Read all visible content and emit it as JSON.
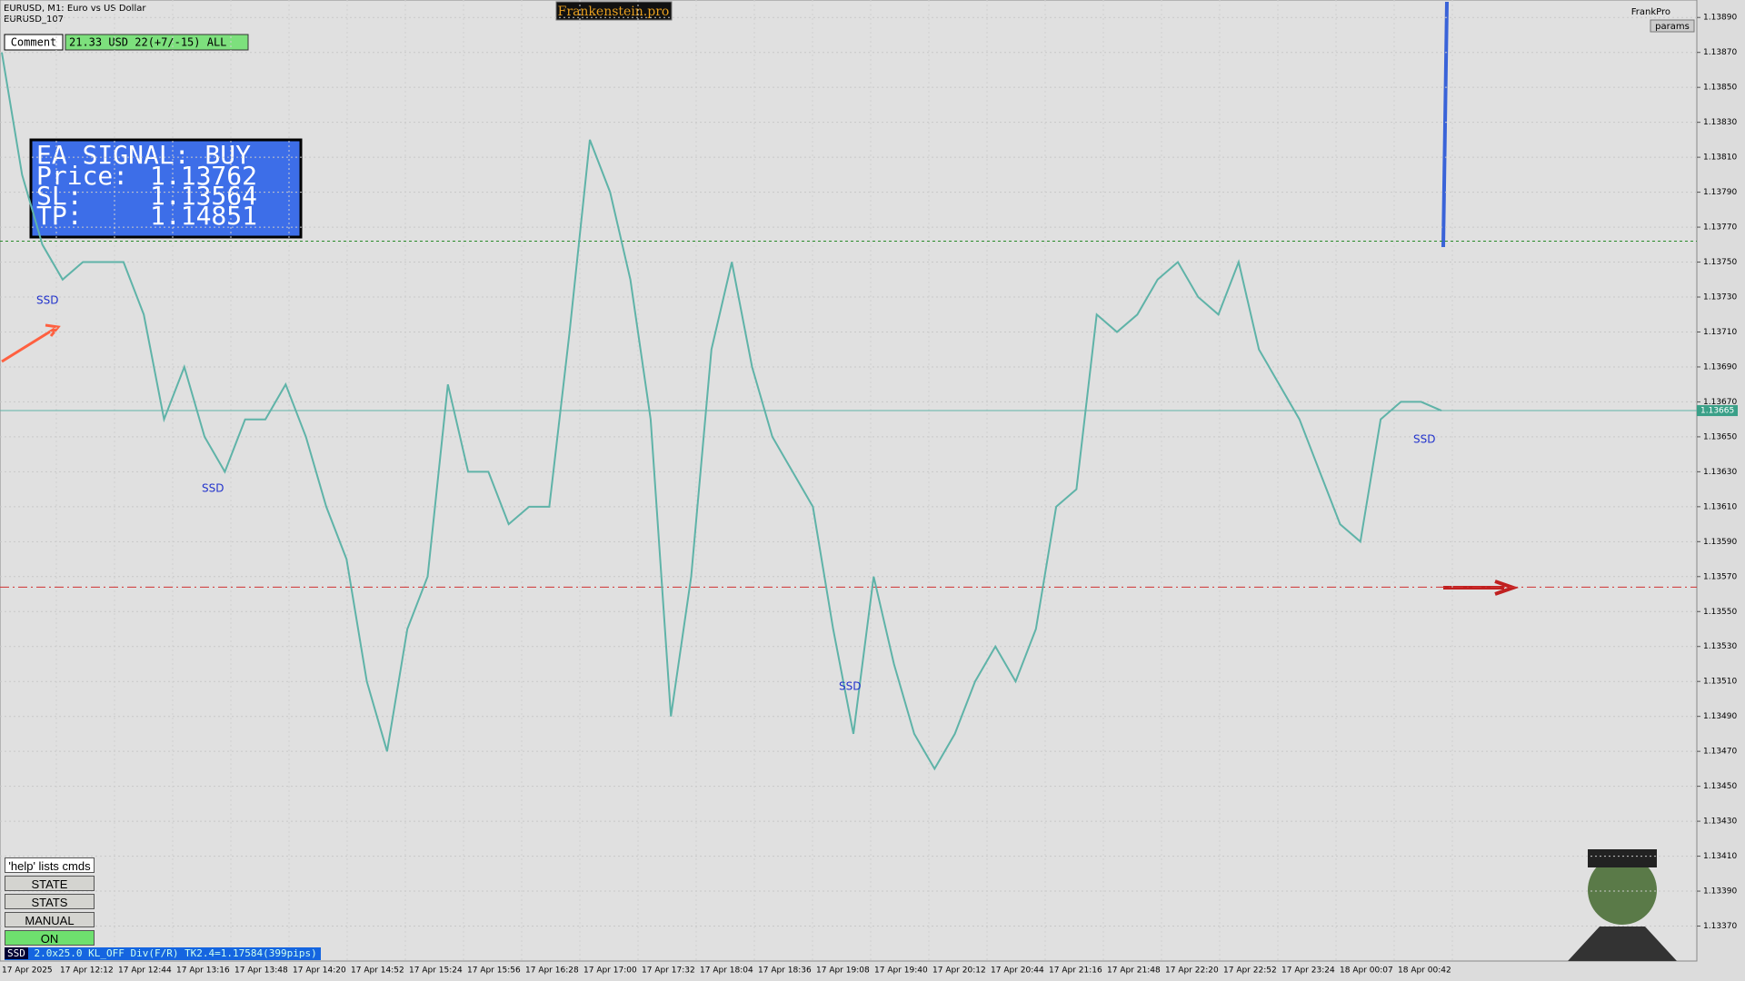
{
  "header": {
    "symbol": "EURUSD, M1:  Euro vs US Dollar",
    "account": "EURUSD_107",
    "brand": "Frankenstein.pro",
    "user": "FrankPro",
    "params": "params"
  },
  "comment": {
    "label": "Comment",
    "text": "21.33 USD 22(+7/-15) ALL"
  },
  "signal": {
    "title": "EA SIGNAL: BUY",
    "rows": [
      [
        "Price:",
        "1.13762"
      ],
      [
        "SL:",
        "1.13564"
      ],
      [
        "TP:",
        "1.14851"
      ]
    ]
  },
  "buttons": [
    "'help' lists cmds",
    "STATE",
    "STATS",
    "MANUAL",
    "ON"
  ],
  "status": {
    "tag": "SSD",
    "text": "2.0x25.0 KL_OFF Div(F/R) TK2.4=1.17584(399pips)"
  },
  "annotations": [
    "SSD",
    "SSD",
    "SSD",
    "SSD"
  ],
  "chart_data": {
    "type": "line",
    "values": [
      1.1387,
      1.138,
      1.1376,
      1.1374,
      1.1375,
      1.1375,
      1.1375,
      1.1372,
      1.1366,
      1.1369,
      1.1365,
      1.1363,
      1.1366,
      1.1366,
      1.1368,
      1.1365,
      1.1361,
      1.1358,
      1.1351,
      1.1347,
      1.1354,
      1.1357,
      1.1368,
      1.1363,
      1.1363,
      1.136,
      1.1361,
      1.1361,
      1.1371,
      1.1382,
      1.1379,
      1.1374,
      1.1366,
      1.1349,
      1.1357,
      1.137,
      1.1375,
      1.1369,
      1.1365,
      1.1363,
      1.1361,
      1.1354,
      1.1348,
      1.1357,
      1.1352,
      1.1348,
      1.1346,
      1.1348,
      1.1351,
      1.1353,
      1.1351,
      1.1354,
      1.1361,
      1.1362,
      1.1372,
      1.1371,
      1.1372,
      1.1374,
      1.1375,
      1.1373,
      1.1372,
      1.1375,
      1.137,
      1.1368,
      1.1366,
      1.1363,
      1.136,
      1.1359,
      1.1366,
      1.1367,
      1.1367,
      1.13665
    ],
    "color": "#5fb3a8",
    "ylim": [
      1.1335,
      1.139
    ],
    "yticks": [
      {
        "value": 1.1389,
        "label": "1.13890"
      },
      {
        "value": 1.1387,
        "label": "1.13870"
      },
      {
        "value": 1.1385,
        "label": "1.13850"
      },
      {
        "value": 1.1383,
        "label": "1.13830"
      },
      {
        "value": 1.1381,
        "label": "1.13810"
      },
      {
        "value": 1.1379,
        "label": "1.13790"
      },
      {
        "value": 1.1377,
        "label": "1.13770"
      },
      {
        "value": 1.1375,
        "label": "1.13750"
      },
      {
        "value": 1.1373,
        "label": "1.13730"
      },
      {
        "value": 1.1371,
        "label": "1.13710"
      },
      {
        "value": 1.1369,
        "label": "1.13690"
      },
      {
        "value": 1.1367,
        "label": "1.13670"
      },
      {
        "value": 1.1365,
        "label": "1.13650"
      },
      {
        "value": 1.1363,
        "label": "1.13630"
      },
      {
        "value": 1.1361,
        "label": "1.13610"
      },
      {
        "value": 1.1359,
        "label": "1.13590"
      },
      {
        "value": 1.1357,
        "label": "1.13570"
      },
      {
        "value": 1.1355,
        "label": "1.13550"
      },
      {
        "value": 1.1353,
        "label": "1.13530"
      },
      {
        "value": 1.1351,
        "label": "1.13510"
      },
      {
        "value": 1.1349,
        "label": "1.13490"
      },
      {
        "value": 1.1347,
        "label": "1.13470"
      },
      {
        "value": 1.1345,
        "label": "1.13450"
      },
      {
        "value": 1.1343,
        "label": "1.13430"
      },
      {
        "value": 1.1341,
        "label": "1.13410"
      },
      {
        "value": 1.1339,
        "label": "1.13390"
      },
      {
        "value": 1.1337,
        "label": "1.13370"
      }
    ],
    "time_labels": [
      "17 Apr 2025",
      "17 Apr 12:12",
      "17 Apr 12:44",
      "17 Apr 13:16",
      "17 Apr 13:48",
      "17 Apr 14:20",
      "17 Apr 14:52",
      "17 Apr 15:24",
      "17 Apr 15:56",
      "17 Apr 16:28",
      "17 Apr 17:00",
      "17 Apr 17:32",
      "17 Apr 18:04",
      "17 Apr 18:36",
      "17 Apr 19:08",
      "17 Apr 19:40",
      "17 Apr 20:12",
      "17 Apr 20:44",
      "17 Apr 21:16",
      "17 Apr 21:48",
      "17 Apr 22:20",
      "17 Apr 22:52",
      "17 Apr 23:24",
      "18 Apr 00:07",
      "18 Apr 00:42"
    ],
    "entry": 1.13762,
    "stop": 1.13564,
    "current": {
      "value": 1.13665,
      "label": "1.13665"
    },
    "grid": true
  }
}
